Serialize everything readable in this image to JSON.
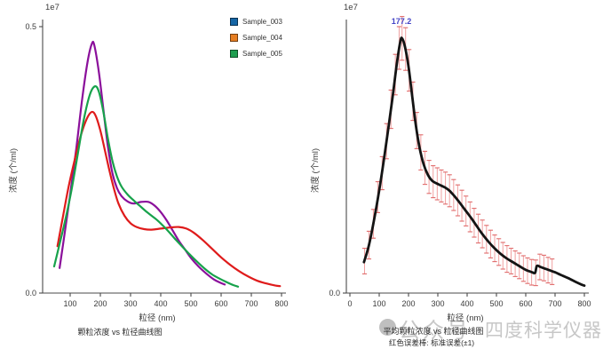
{
  "watermark": {
    "badge": "公众号",
    "brand": "四度科学仪器",
    "color": "#c7c7c7"
  },
  "chart_data": [
    {
      "type": "line",
      "caption": "颗粒浓度 vs 粒径曲线图",
      "xlabel": "粒径 (nm)",
      "ylabel": "浓度 (个/ml)",
      "offset_text": "1e7",
      "grid": false,
      "legend_position": "upper right",
      "xlim": [
        9,
        830
      ],
      "ylim": [
        0,
        0.513
      ],
      "xticks": [
        100,
        200,
        300,
        400,
        500,
        600,
        700,
        800
      ],
      "yticks": [
        0,
        0.5
      ],
      "ytick_labels": [
        "0.0",
        "0.5"
      ],
      "series": [
        {
          "name": "Sample_003",
          "legend_color": "#1565a5",
          "curve_color": "#8b109b",
          "linewidth": 2.2,
          "points": [
            [
              65,
              0.047
            ],
            [
              80,
              0.105
            ],
            [
              100,
              0.185
            ],
            [
              120,
              0.27
            ],
            [
              140,
              0.365
            ],
            [
              158,
              0.435
            ],
            [
              172,
              0.468
            ],
            [
              180,
              0.465
            ],
            [
              195,
              0.415
            ],
            [
              210,
              0.345
            ],
            [
              225,
              0.275
            ],
            [
              240,
              0.225
            ],
            [
              255,
              0.197
            ],
            [
              270,
              0.182
            ],
            [
              290,
              0.172
            ],
            [
              310,
              0.168
            ],
            [
              335,
              0.171
            ],
            [
              360,
              0.171
            ],
            [
              380,
              0.164
            ],
            [
              400,
              0.152
            ],
            [
              420,
              0.136
            ],
            [
              440,
              0.117
            ],
            [
              460,
              0.098
            ],
            [
              480,
              0.082
            ],
            [
              500,
              0.066
            ],
            [
              525,
              0.05
            ],
            [
              550,
              0.037
            ],
            [
              575,
              0.026
            ],
            [
              595,
              0.02
            ],
            [
              612,
              0.016
            ]
          ]
        },
        {
          "name": "Sample_004",
          "legend_color": "#e67e22",
          "curve_color": "#df1b1b",
          "linewidth": 2.2,
          "points": [
            [
              58,
              0.088
            ],
            [
              75,
              0.14
            ],
            [
              95,
              0.2
            ],
            [
              115,
              0.25
            ],
            [
              135,
              0.295
            ],
            [
              155,
              0.327
            ],
            [
              172,
              0.34
            ],
            [
              185,
              0.332
            ],
            [
              200,
              0.305
            ],
            [
              215,
              0.268
            ],
            [
              230,
              0.23
            ],
            [
              245,
              0.196
            ],
            [
              260,
              0.168
            ],
            [
              280,
              0.145
            ],
            [
              300,
              0.131
            ],
            [
              320,
              0.124
            ],
            [
              345,
              0.12
            ],
            [
              370,
              0.119
            ],
            [
              400,
              0.121
            ],
            [
              430,
              0.123
            ],
            [
              460,
              0.124
            ],
            [
              485,
              0.121
            ],
            [
              510,
              0.113
            ],
            [
              540,
              0.099
            ],
            [
              570,
              0.083
            ],
            [
              600,
              0.067
            ],
            [
              630,
              0.053
            ],
            [
              660,
              0.041
            ],
            [
              690,
              0.031
            ],
            [
              720,
              0.023
            ],
            [
              750,
              0.018
            ],
            [
              780,
              0.014
            ],
            [
              795,
              0.013
            ]
          ]
        },
        {
          "name": "Sample_005",
          "legend_color": "#1e9e4f",
          "curve_color": "#17a24b",
          "linewidth": 2.2,
          "points": [
            [
              47,
              0.05
            ],
            [
              65,
              0.092
            ],
            [
              85,
              0.14
            ],
            [
              105,
              0.195
            ],
            [
              125,
              0.26
            ],
            [
              145,
              0.325
            ],
            [
              165,
              0.372
            ],
            [
              182,
              0.388
            ],
            [
              195,
              0.378
            ],
            [
              210,
              0.34
            ],
            [
              225,
              0.29
            ],
            [
              240,
              0.248
            ],
            [
              255,
              0.219
            ],
            [
              270,
              0.2
            ],
            [
              290,
              0.185
            ],
            [
              310,
              0.174
            ],
            [
              330,
              0.164
            ],
            [
              350,
              0.154
            ],
            [
              370,
              0.145
            ],
            [
              390,
              0.136
            ],
            [
              410,
              0.125
            ],
            [
              430,
              0.113
            ],
            [
              450,
              0.1
            ],
            [
              470,
              0.088
            ],
            [
              495,
              0.073
            ],
            [
              520,
              0.059
            ],
            [
              545,
              0.046
            ],
            [
              570,
              0.035
            ],
            [
              595,
              0.027
            ],
            [
              620,
              0.02
            ],
            [
              640,
              0.015
            ],
            [
              656,
              0.012
            ]
          ]
        }
      ]
    },
    {
      "type": "line",
      "caption": "平均颗粒浓度 vs 粒径曲线图",
      "caption2": "红色误差棒: 标准误差(±1)",
      "xlabel": "粒径 (nm)",
      "ylabel": "浓度 (个/ml)",
      "offset_text": "1e7",
      "grid": false,
      "xlim": [
        -12,
        830
      ],
      "ylim": [
        0,
        0.513
      ],
      "xticks": [
        0,
        100,
        200,
        300,
        400,
        500,
        600,
        700,
        800
      ],
      "yticks": [
        0
      ],
      "ytick_labels": [
        "0.0"
      ],
      "annotation": {
        "text": "177.2",
        "x": 177,
        "color": "#4343c6"
      },
      "series": [
        {
          "name": "mean",
          "curve_color": "#141414",
          "linewidth": 2.8,
          "points": [
            [
              48,
              0.058
            ],
            [
              65,
              0.09
            ],
            [
              85,
              0.145
            ],
            [
              105,
              0.21
            ],
            [
              125,
              0.285
            ],
            [
              145,
              0.365
            ],
            [
              160,
              0.43
            ],
            [
              172,
              0.472
            ],
            [
              178,
              0.478
            ],
            [
              188,
              0.462
            ],
            [
              200,
              0.425
            ],
            [
              212,
              0.372
            ],
            [
              225,
              0.315
            ],
            [
              238,
              0.272
            ],
            [
              252,
              0.241
            ],
            [
              266,
              0.222
            ],
            [
              280,
              0.211
            ],
            [
              295,
              0.206
            ],
            [
              310,
              0.202
            ],
            [
              325,
              0.198
            ],
            [
              340,
              0.192
            ],
            [
              355,
              0.183
            ],
            [
              370,
              0.173
            ],
            [
              385,
              0.162
            ],
            [
              400,
              0.151
            ],
            [
              415,
              0.14
            ],
            [
              430,
              0.128
            ],
            [
              445,
              0.116
            ],
            [
              460,
              0.105
            ],
            [
              475,
              0.095
            ],
            [
              490,
              0.086
            ],
            [
              505,
              0.078
            ],
            [
              520,
              0.071
            ],
            [
              535,
              0.065
            ],
            [
              550,
              0.06
            ],
            [
              565,
              0.055
            ],
            [
              580,
              0.05
            ],
            [
              592,
              0.046
            ],
            [
              602,
              0.043
            ],
            [
              612,
              0.041
            ],
            [
              622,
              0.039
            ],
            [
              632,
              0.038
            ],
            [
              638,
              0.051
            ],
            [
              650,
              0.049
            ],
            [
              665,
              0.046
            ],
            [
              680,
              0.043
            ],
            [
              700,
              0.039
            ],
            [
              720,
              0.034
            ],
            [
              745,
              0.028
            ],
            [
              770,
              0.021
            ],
            [
              790,
              0.016
            ],
            [
              800,
              0.014
            ]
          ]
        }
      ],
      "errorbars": {
        "color": "#f0a0a0",
        "cap_color": "#e06a6a",
        "points": [
          [
            50,
            0.06,
            0.024
          ],
          [
            65,
            0.09,
            0.026
          ],
          [
            80,
            0.13,
            0.027
          ],
          [
            95,
            0.18,
            0.029
          ],
          [
            110,
            0.225,
            0.031
          ],
          [
            125,
            0.285,
            0.033
          ],
          [
            140,
            0.345,
            0.036
          ],
          [
            155,
            0.41,
            0.038
          ],
          [
            168,
            0.46,
            0.04
          ],
          [
            178,
            0.478,
            0.041
          ],
          [
            190,
            0.458,
            0.04
          ],
          [
            202,
            0.418,
            0.039
          ],
          [
            215,
            0.36,
            0.036
          ],
          [
            228,
            0.305,
            0.034
          ],
          [
            242,
            0.264,
            0.033
          ],
          [
            256,
            0.235,
            0.031
          ],
          [
            270,
            0.218,
            0.031
          ],
          [
            284,
            0.209,
            0.03
          ],
          [
            298,
            0.205,
            0.03
          ],
          [
            312,
            0.201,
            0.03
          ],
          [
            326,
            0.197,
            0.03
          ],
          [
            340,
            0.192,
            0.03
          ],
          [
            354,
            0.184,
            0.029
          ],
          [
            368,
            0.174,
            0.029
          ],
          [
            382,
            0.164,
            0.029
          ],
          [
            396,
            0.154,
            0.028
          ],
          [
            410,
            0.143,
            0.028
          ],
          [
            424,
            0.132,
            0.027
          ],
          [
            438,
            0.121,
            0.027
          ],
          [
            452,
            0.111,
            0.026
          ],
          [
            466,
            0.101,
            0.026
          ],
          [
            480,
            0.092,
            0.026
          ],
          [
            494,
            0.084,
            0.025
          ],
          [
            508,
            0.077,
            0.025
          ],
          [
            522,
            0.07,
            0.025
          ],
          [
            536,
            0.064,
            0.025
          ],
          [
            550,
            0.06,
            0.024
          ],
          [
            564,
            0.055,
            0.024
          ],
          [
            578,
            0.051,
            0.024
          ],
          [
            592,
            0.046,
            0.024
          ],
          [
            606,
            0.042,
            0.024
          ],
          [
            620,
            0.039,
            0.024
          ],
          [
            634,
            0.038,
            0.024
          ],
          [
            648,
            0.049,
            0.024
          ],
          [
            662,
            0.047,
            0.024
          ],
          [
            676,
            0.043,
            0.024
          ],
          [
            690,
            0.04,
            0.024
          ]
        ]
      }
    }
  ]
}
